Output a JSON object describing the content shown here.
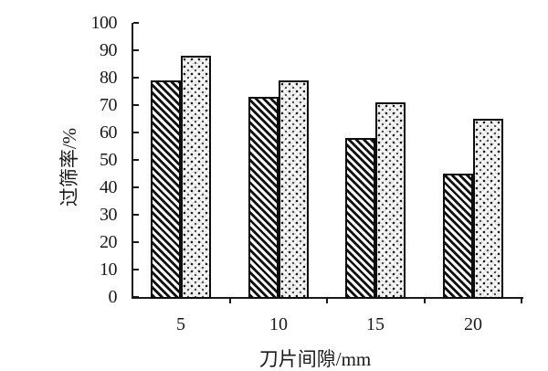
{
  "figure": {
    "background": "#ffffff",
    "axis_color": "#1a1a1a",
    "text_color": "#1a1a1a",
    "bar_outline_color": "#0d0d0d"
  },
  "chart_data": {
    "type": "bar",
    "title": "",
    "xlabel": "刀片间隙/mm",
    "ylabel": "过筛率/%",
    "categories": [
      "5",
      "10",
      "15",
      "20"
    ],
    "series": [
      {
        "name": "diagonal-hatch-series",
        "pattern": "diagonal-hatch",
        "values": [
          79,
          73,
          58,
          45
        ]
      },
      {
        "name": "dotted-series",
        "pattern": "dotted",
        "values": [
          88,
          79,
          71,
          65
        ]
      }
    ],
    "ylim": [
      0,
      100
    ],
    "yticks": [
      0,
      10,
      20,
      30,
      40,
      50,
      60,
      70,
      80,
      90,
      100
    ],
    "grid": false,
    "legend_position": "none"
  }
}
